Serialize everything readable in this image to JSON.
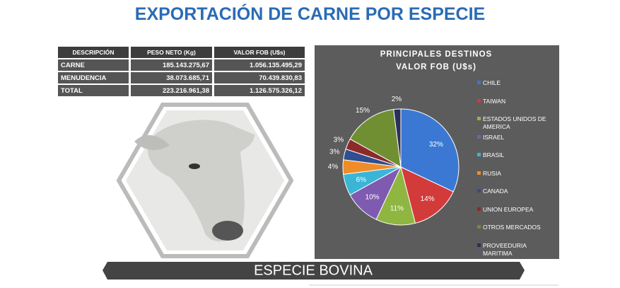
{
  "title": "EXPORTACIÓN DE CARNE POR ESPECIE",
  "table": {
    "headers": [
      "DESCRIPCIÓN",
      "PESO NETO (Kg)",
      "VALOR FOB (U$s)"
    ],
    "rows": [
      [
        "CARNE",
        "185.143.275,67",
        "1.056.135.495,29"
      ],
      [
        "MENUDENCIA",
        "38.073.685,71",
        "70.439.830,83"
      ],
      [
        "TOTAL",
        "223.216.961,38",
        "1.126.575.326,12"
      ]
    ]
  },
  "banner": "ESPECIE  BOVINA",
  "chart_data": {
    "type": "pie",
    "title": [
      "PRINCIPALES DESTINOS",
      "VALOR FOB (U$s)"
    ],
    "categories": [
      "CHILE",
      "TAIWAN",
      "ESTADOS UNIDOS DE AMERICA",
      "ISRAEL",
      "BRASIL",
      "RUSIA",
      "CANADA",
      "UNION EUROPEA",
      "OTROS MERCADOS",
      "PROVEEDURIA MARITIMA"
    ],
    "values": [
      32,
      14,
      11,
      10,
      6,
      4,
      3,
      3,
      15,
      2
    ],
    "value_labels": [
      "32%",
      "14%",
      "11%",
      "10%",
      "6%",
      "4%",
      "3%",
      "3%",
      "15%",
      "2%"
    ],
    "colors": [
      "#3a78d4",
      "#d33a3a",
      "#8fb640",
      "#7e5bb0",
      "#3bb5d6",
      "#f08c28",
      "#2f4f8f",
      "#8c2a2a",
      "#6f8f32",
      "#2c2f5a"
    ]
  }
}
